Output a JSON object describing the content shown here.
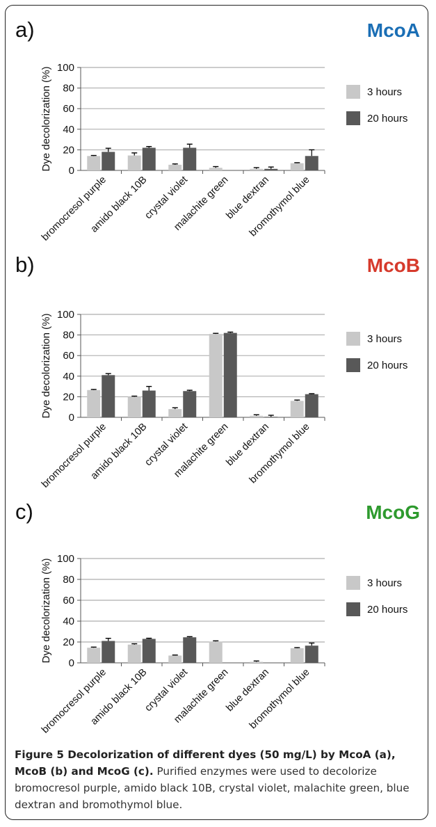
{
  "chart_data": [
    {
      "type": "bar",
      "panel": "a)",
      "title": "McoA",
      "title_color": "#1a6eb5",
      "ylabel": "Dye decolorization (%)",
      "xlabel": "",
      "ylim": [
        0,
        100
      ],
      "yticks": [
        0,
        20,
        40,
        60,
        80,
        100
      ],
      "grid": true,
      "legend": "right",
      "categories": [
        "bromocresol purple",
        "amido black 10B",
        "crystal violet",
        "malachite green",
        "blue dextran",
        "bromothymol blue"
      ],
      "series": [
        {
          "name": "3 hours",
          "color": "#c8c8c8",
          "values": [
            14,
            14.5,
            5.5,
            2.5,
            1.5,
            7
          ],
          "errors": [
            0.5,
            2.5,
            0.8,
            1.2,
            1.2,
            0.5
          ]
        },
        {
          "name": "20 hours",
          "color": "#585858",
          "values": [
            18,
            22,
            22,
            0,
            1.5,
            14
          ],
          "errors": [
            3.5,
            1.2,
            3.5,
            0,
            1.8,
            6
          ]
        }
      ]
    },
    {
      "type": "bar",
      "panel": "b)",
      "title": "McoB",
      "title_color": "#d63a2c",
      "ylabel": "Dye decolorization (%)",
      "xlabel": "",
      "ylim": [
        0,
        100
      ],
      "yticks": [
        0,
        20,
        40,
        60,
        80,
        100
      ],
      "grid": true,
      "legend": "right",
      "categories": [
        "bromocresol purple",
        "amido black 10B",
        "crystal violet",
        "malachite green",
        "blue dextran",
        "bromothymol blue"
      ],
      "series": [
        {
          "name": "3 hours",
          "color": "#c8c8c8",
          "values": [
            26.5,
            20,
            8,
            81,
            1.5,
            16
          ],
          "errors": [
            0.6,
            0.6,
            1.3,
            0.6,
            1,
            0.8
          ]
        },
        {
          "name": "20 hours",
          "color": "#585858",
          "values": [
            41,
            26,
            25.5,
            82,
            0.5,
            22.5
          ],
          "errors": [
            1.5,
            4,
            0.8,
            0.8,
            1.5,
            0.5
          ]
        }
      ]
    },
    {
      "type": "bar",
      "panel": "c)",
      "title": "McoG",
      "title_color": "#2e9a2e",
      "ylabel": "Dye decolorization (%)",
      "xlabel": "",
      "ylim": [
        0,
        100
      ],
      "yticks": [
        0,
        20,
        40,
        60,
        80,
        100
      ],
      "grid": true,
      "legend": "right",
      "categories": [
        "bromocresol purple",
        "amido black 10B",
        "crystal violet",
        "malachite green",
        "blue dextran",
        "bromothymol blue"
      ],
      "series": [
        {
          "name": "3 hours",
          "color": "#c8c8c8",
          "values": [
            14.5,
            17.5,
            7,
            20.5,
            1,
            14
          ],
          "errors": [
            0.6,
            0.8,
            0.5,
            0.6,
            0.8,
            0.6
          ]
        },
        {
          "name": "20 hours",
          "color": "#585858",
          "values": [
            21,
            23,
            24.5,
            0,
            0,
            16.5
          ],
          "errors": [
            2.5,
            0.6,
            0.6,
            0,
            0,
            2.5
          ]
        }
      ]
    }
  ],
  "caption": {
    "bold": "Figure 5 Decolorization of different dyes (50 mg/L) by McoA (a), McoB (b) and McoG (c).",
    "text": " Purified enzymes were used to decolorize bromocresol purple, amido black 10B, crystal violet, malachite green, blue dextran and bromothymol blue."
  }
}
